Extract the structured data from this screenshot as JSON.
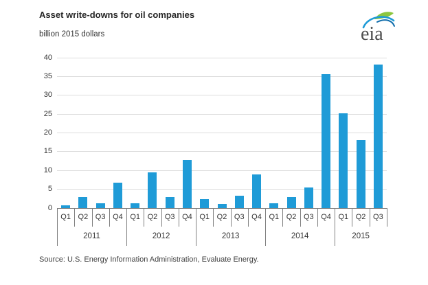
{
  "header": {
    "title": "Asset write-downs for oil companies",
    "subtitle": "billion 2015 dollars"
  },
  "logo": {
    "text": "eia",
    "swoosh_green": "#8cc63f",
    "swoosh_blue": "#1f9bd7",
    "swoosh_dark_blue": "#0e6cab",
    "text_color": "#4d4d4d"
  },
  "footer": {
    "source": "Source:  U.S. Energy Information Administration, Evaluate Energy."
  },
  "chart_data": {
    "type": "bar",
    "title": "Asset write-downs for oil companies",
    "ylabel": "billion 2015 dollars",
    "xlabel": "",
    "ylim": [
      0,
      40
    ],
    "ytick_step": 5,
    "grid": true,
    "legend": "none",
    "bar_color": "#1f9bd7",
    "groups": [
      {
        "year": "2011",
        "quarters": [
          "Q1",
          "Q2",
          "Q3",
          "Q4"
        ],
        "values": [
          0.8,
          3.0,
          1.2,
          6.7
        ]
      },
      {
        "year": "2012",
        "quarters": [
          "Q1",
          "Q2",
          "Q3",
          "Q4"
        ],
        "values": [
          1.3,
          9.5,
          2.9,
          12.7
        ]
      },
      {
        "year": "2013",
        "quarters": [
          "Q1",
          "Q2",
          "Q3",
          "Q4"
        ],
        "values": [
          2.4,
          1.1,
          3.3,
          9.0
        ]
      },
      {
        "year": "2014",
        "quarters": [
          "Q1",
          "Q2",
          "Q3",
          "Q4"
        ],
        "values": [
          1.2,
          2.9,
          5.4,
          35.7
        ]
      },
      {
        "year": "2015",
        "quarters": [
          "Q1",
          "Q2",
          "Q3"
        ],
        "values": [
          25.2,
          18.0,
          38.2
        ]
      }
    ]
  }
}
